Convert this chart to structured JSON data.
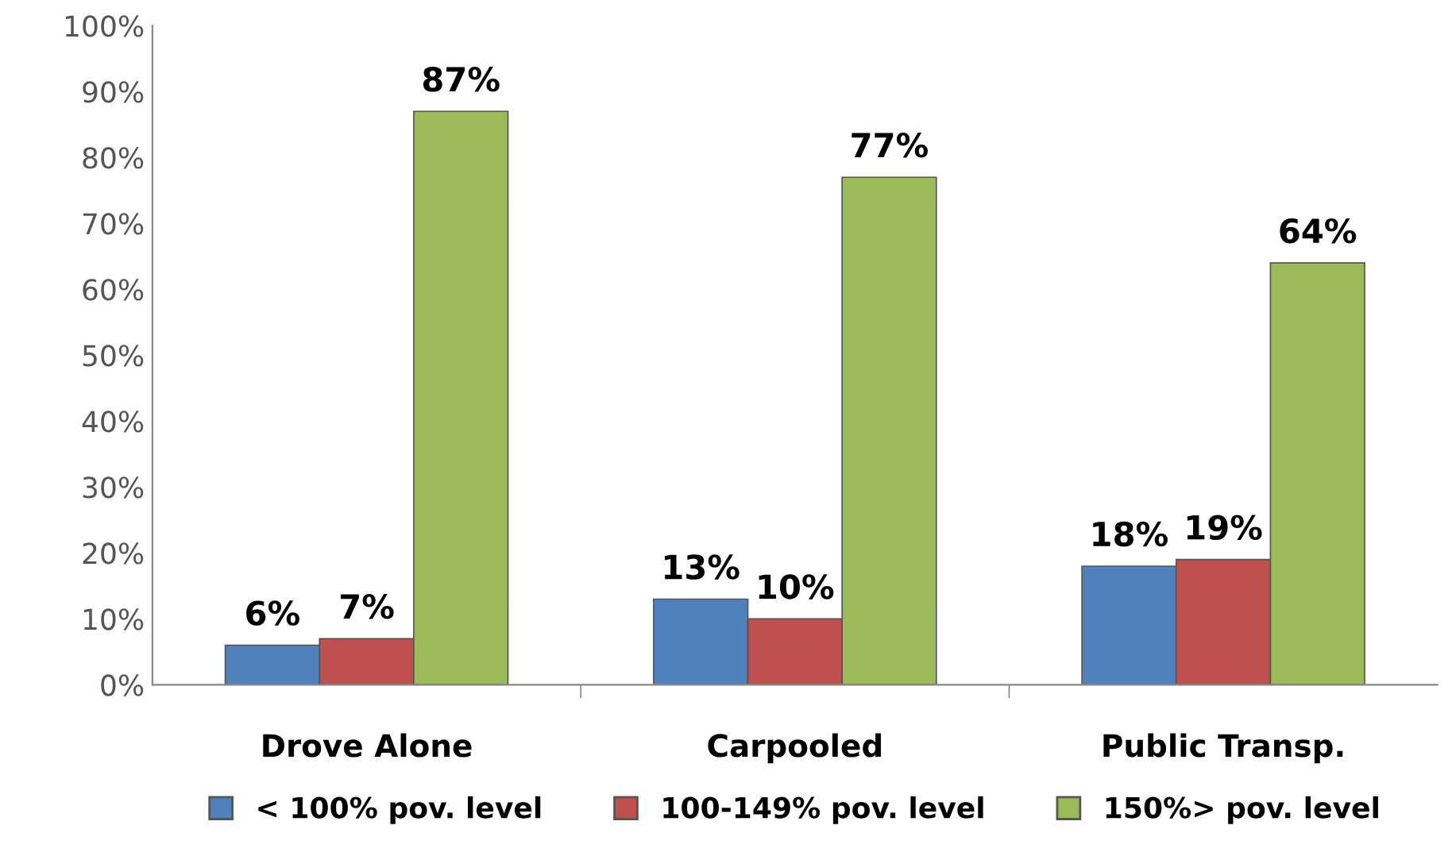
{
  "chart_data": {
    "type": "bar",
    "categories": [
      "Drove Alone",
      "Carpooled",
      "Public Transp."
    ],
    "series": [
      {
        "name": "< 100% pov. level",
        "color": "#4f81bd",
        "values": [
          6,
          13,
          18
        ],
        "value_labels": [
          "6%",
          "13%",
          "18%"
        ]
      },
      {
        "name": "100-149% pov. level",
        "color": "#c0504d",
        "values": [
          7,
          10,
          19
        ],
        "value_labels": [
          "7%",
          "10%",
          "19%"
        ]
      },
      {
        "name": "150%> pov. level",
        "color": "#9bbb59",
        "values": [
          87,
          77,
          64
        ],
        "value_labels": [
          "87%",
          "77%",
          "64%"
        ]
      }
    ],
    "ylim": [
      0,
      100
    ],
    "yticks": [
      {
        "value": 0,
        "label": "0%"
      },
      {
        "value": 10,
        "label": "10%"
      },
      {
        "value": 20,
        "label": "20%"
      },
      {
        "value": 30,
        "label": "30%"
      },
      {
        "value": 40,
        "label": "40%"
      },
      {
        "value": 50,
        "label": "50%"
      },
      {
        "value": 60,
        "label": "60%"
      },
      {
        "value": 70,
        "label": "70%"
      },
      {
        "value": 80,
        "label": "80%"
      },
      {
        "value": 90,
        "label": "90%"
      },
      {
        "value": 100,
        "label": "100%"
      }
    ],
    "grid": false,
    "legend": "bottom"
  }
}
